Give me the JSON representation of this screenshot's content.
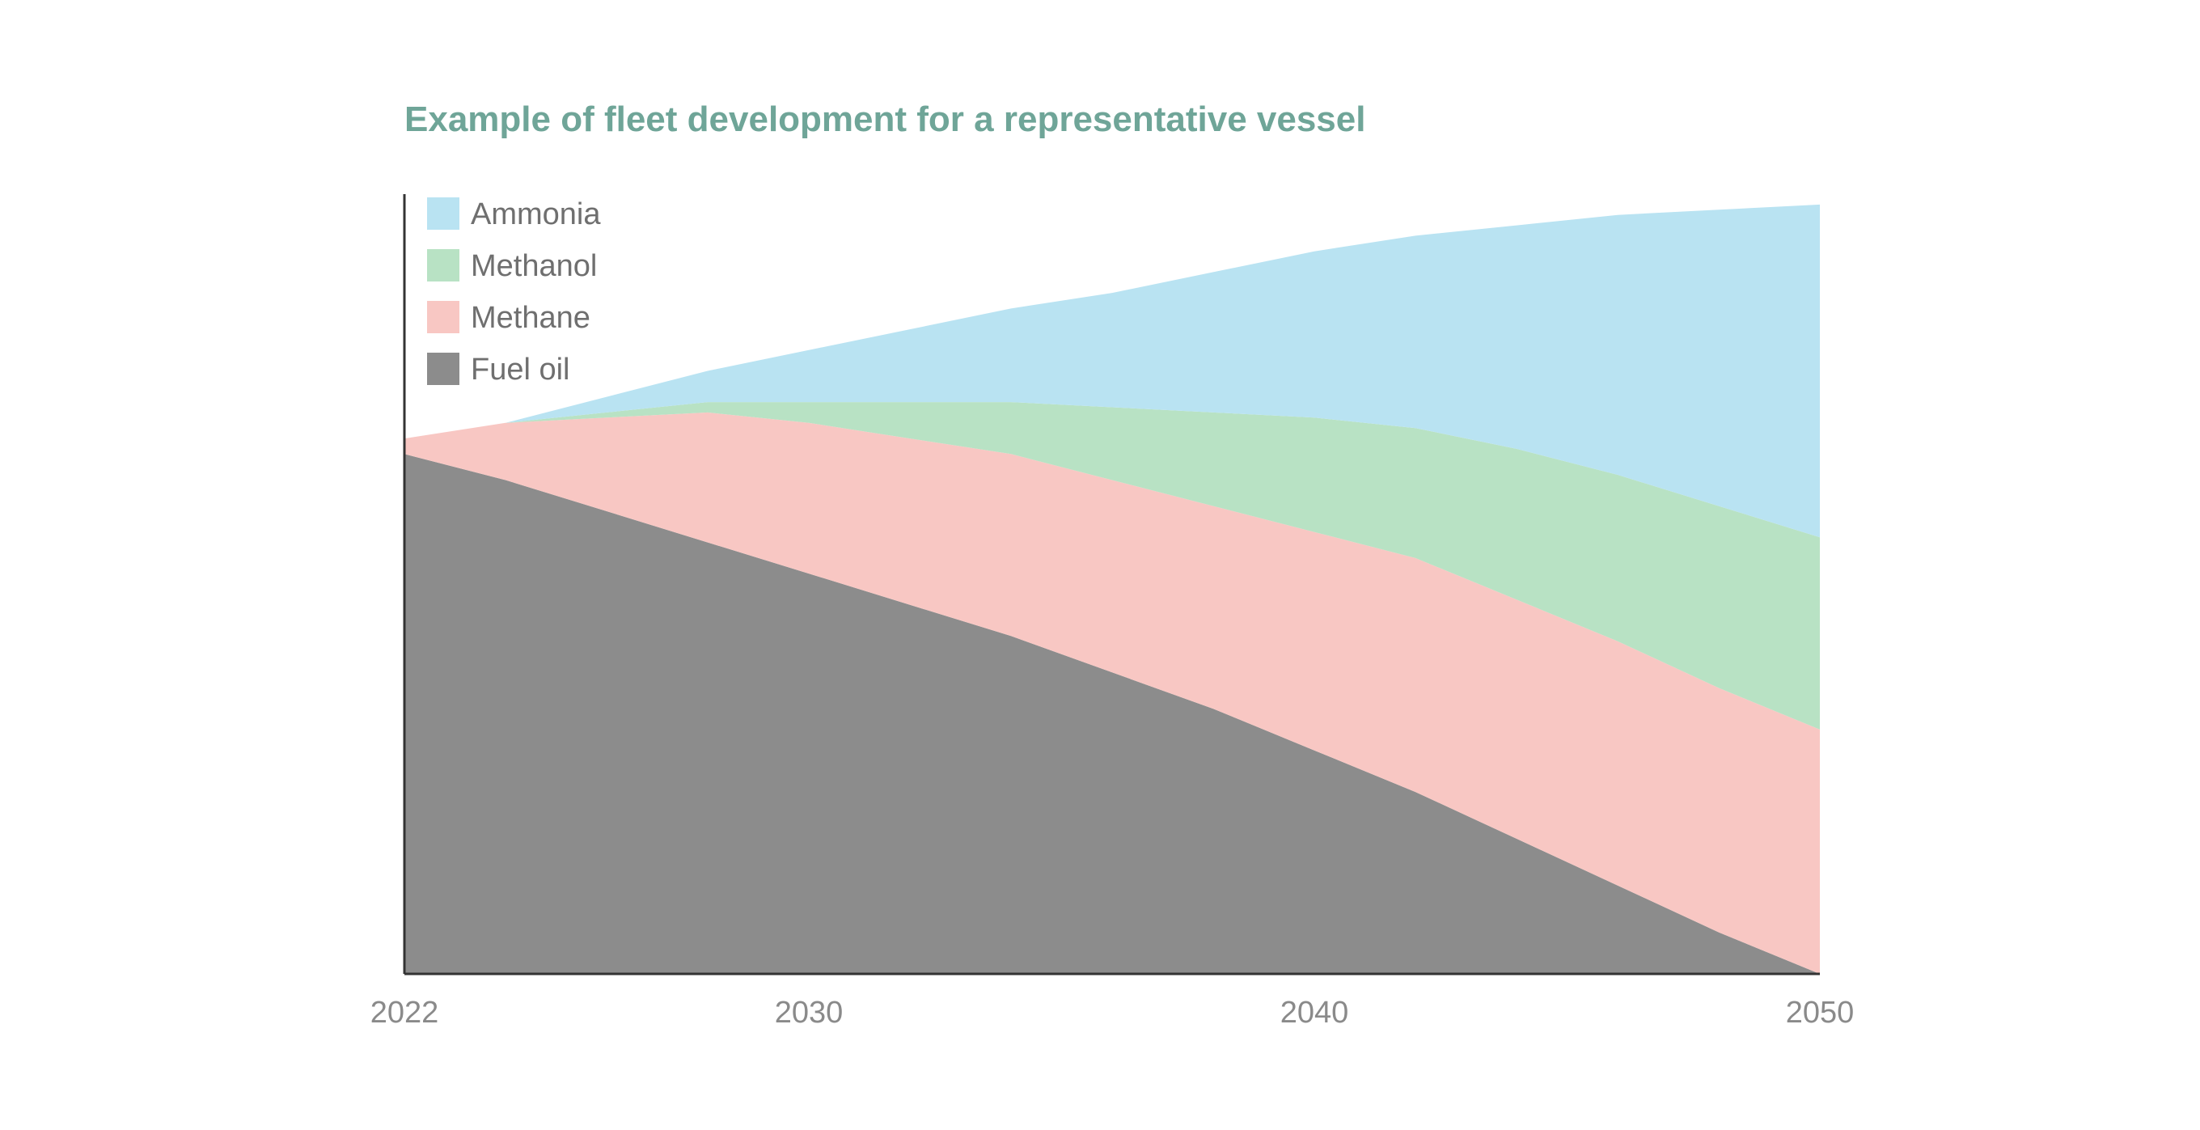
{
  "chart_data": {
    "type": "area",
    "stacked": true,
    "title": "Example of fleet development for a representative vessel",
    "title_color": "#6fa598",
    "xlabel": "",
    "ylabel": "",
    "x": [
      2022,
      2024,
      2026,
      2028,
      2030,
      2032,
      2034,
      2036,
      2038,
      2040,
      2042,
      2044,
      2046,
      2048,
      2050
    ],
    "xlim": [
      2022,
      2050
    ],
    "xticks": [
      2022,
      2030,
      2040,
      2050
    ],
    "xtick_labels": [
      "2022",
      "2030",
      "2040",
      "2050"
    ],
    "ylim": [
      0,
      1.5
    ],
    "y_axis_ticks_shown": false,
    "grid": false,
    "legend_position": "top-left",
    "series": [
      {
        "name": "Fuel oil",
        "color": "#8c8c8c",
        "values": [
          1.0,
          0.95,
          0.89,
          0.83,
          0.77,
          0.71,
          0.65,
          0.58,
          0.51,
          0.43,
          0.35,
          0.26,
          0.17,
          0.08,
          0.0
        ]
      },
      {
        "name": "Methane",
        "color": "#f8c7c3",
        "values": [
          0.03,
          0.11,
          0.18,
          0.25,
          0.29,
          0.32,
          0.35,
          0.37,
          0.39,
          0.42,
          0.45,
          0.46,
          0.47,
          0.47,
          0.47
        ]
      },
      {
        "name": "Methanol",
        "color": "#b8e2c4",
        "values": [
          0.0,
          0.0,
          0.01,
          0.02,
          0.04,
          0.07,
          0.1,
          0.14,
          0.18,
          0.22,
          0.25,
          0.29,
          0.32,
          0.35,
          0.37
        ]
      },
      {
        "name": "Ammonia",
        "color": "#b9e3f2",
        "values": [
          0.0,
          0.0,
          0.03,
          0.06,
          0.1,
          0.14,
          0.18,
          0.22,
          0.27,
          0.32,
          0.37,
          0.43,
          0.5,
          0.57,
          0.64
        ]
      }
    ],
    "legend_order": [
      "Ammonia",
      "Methanol",
      "Methane",
      "Fuel oil"
    ],
    "axis_color": "#333333",
    "tick_label_color": "#8a8a8a"
  }
}
